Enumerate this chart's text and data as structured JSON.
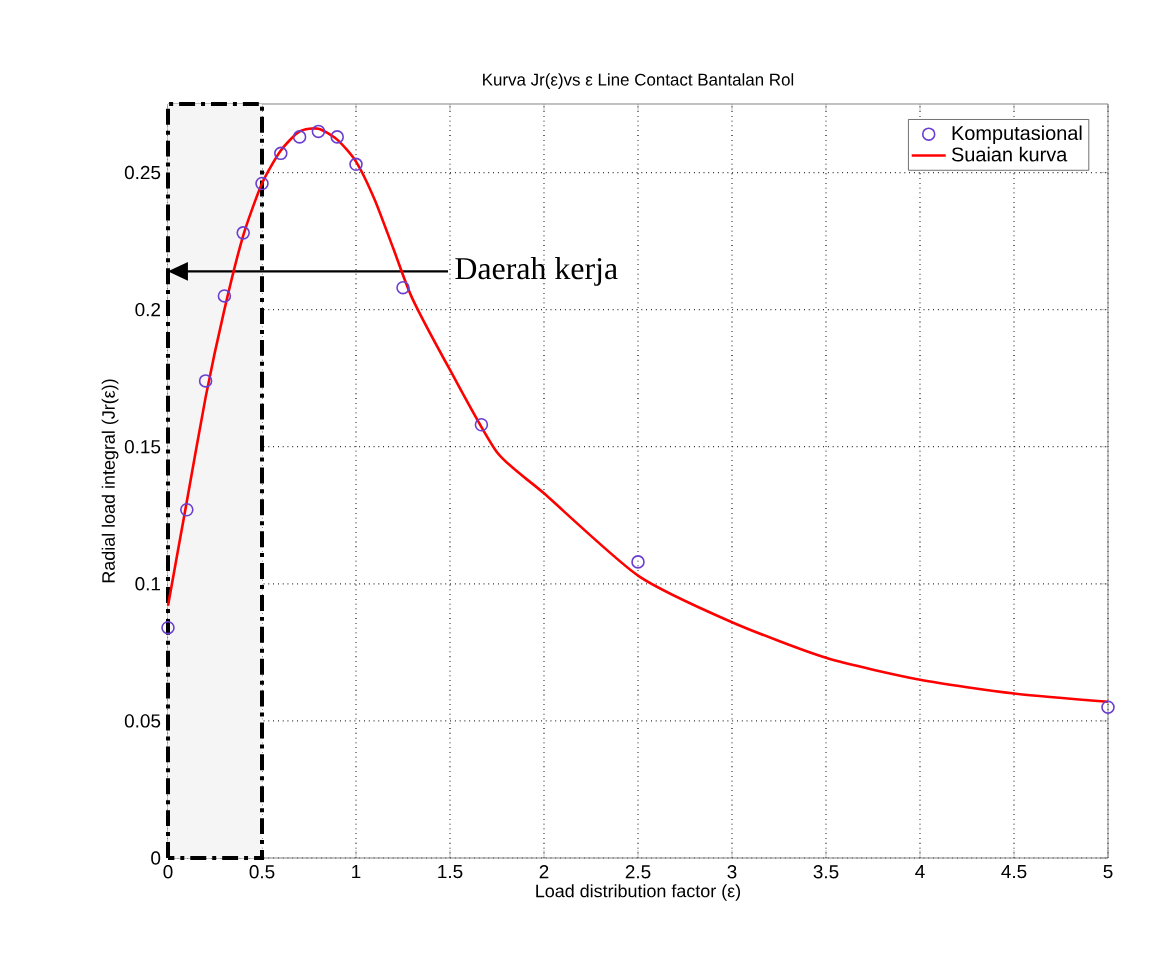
{
  "chart_data": {
    "type": "scatter",
    "title": "Kurva Jr(ε)vs ε  Line Contact Bantalan Rol",
    "xlabel": "Load distribution factor (ε)",
    "ylabel": "Radial load integral (Jr(ε))",
    "series": [
      {
        "name": "Komputasional",
        "color": "#6a3fd0",
        "marker": "circle",
        "x": [
          0,
          0.1,
          0.2,
          0.3,
          0.4,
          0.5,
          0.6,
          0.7,
          0.8,
          0.9,
          1.0,
          1.25,
          1.667,
          2.5,
          5
        ],
        "values": [
          0.084,
          0.127,
          0.174,
          0.205,
          0.228,
          0.246,
          0.257,
          0.263,
          0.265,
          0.263,
          0.253,
          0.208,
          0.158,
          0.108,
          0.055
        ]
      },
      {
        "name": "Suaian kurva",
        "type": "line",
        "color": "#ff0000",
        "marker": "none",
        "line_style": "solid",
        "x": [
          0,
          0.1,
          0.2,
          0.3,
          0.4,
          0.5,
          0.6,
          0.7,
          0.8,
          0.9,
          1.0,
          1.1,
          1.2,
          1.3,
          1.5,
          1.75,
          2.0,
          2.5,
          3.0,
          3.5,
          4.0,
          4.5,
          5.0
        ],
        "values": [
          0.092,
          0.13,
          0.168,
          0.2,
          0.227,
          0.246,
          0.258,
          0.265,
          0.266,
          0.262,
          0.254,
          0.24,
          0.222,
          0.204,
          0.178,
          0.148,
          0.133,
          0.103,
          0.086,
          0.073,
          0.065,
          0.06,
          0.057
        ]
      }
    ],
    "xlim": [
      0,
      5
    ],
    "ylim": [
      0,
      0.275
    ],
    "xticks": [
      0,
      0.5,
      1,
      1.5,
      2,
      2.5,
      3,
      3.5,
      4,
      4.5,
      5
    ],
    "yticks": [
      0,
      0.05,
      0.1,
      0.15,
      0.2,
      0.25
    ],
    "grid": true,
    "legend": "top right",
    "bands": [
      {
        "axis": "x",
        "from": 0,
        "to": 0.5,
        "color": "#000000",
        "label": "Daerah kerja"
      }
    ]
  }
}
